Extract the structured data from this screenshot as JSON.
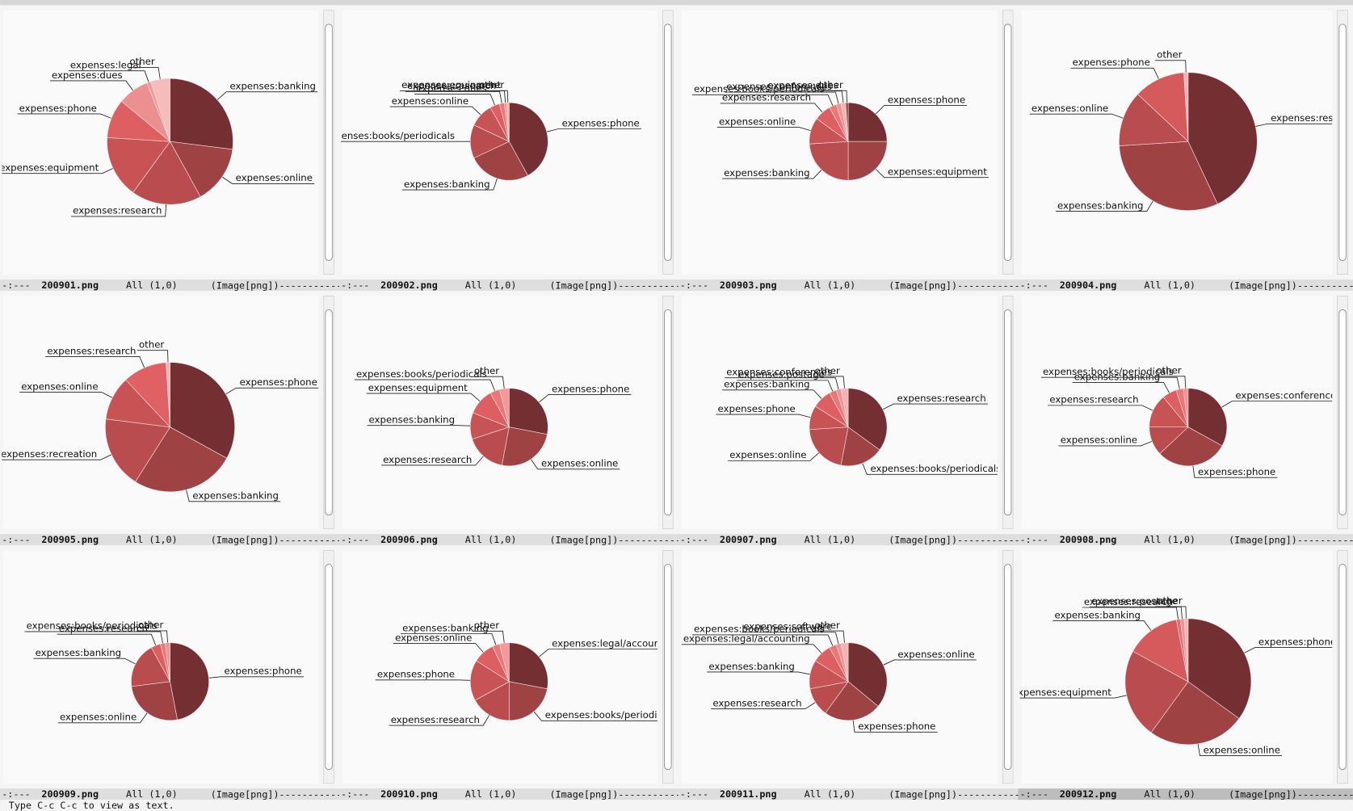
{
  "windows": [
    {
      "status": "-:---",
      "buffer": "200901.png",
      "position": "All (1,0)",
      "mode": "(Image[png])",
      "dashes": "------------",
      "chart_data": {
        "type": "pie",
        "categories": [
          "expenses:banking",
          "expenses:online",
          "expenses:research",
          "expenses:equipment",
          "expenses:phone",
          "expenses:dues",
          "expenses:legal",
          "other"
        ],
        "values": [
          27,
          15,
          18,
          16,
          10,
          8,
          1,
          5
        ],
        "colors": [
          "#732f31",
          "#9e4244",
          "#b84c4e",
          "#c85355",
          "#dd5f61",
          "#ec8f90",
          "#f29a9b",
          "#f6bcbc"
        ]
      }
    },
    {
      "status": "-:---",
      "buffer": "200902.png",
      "position": "All (1,0)",
      "mode": "(Image[png])",
      "dashes": "------------",
      "chart_data": {
        "type": "pie",
        "categories": [
          "expenses:phone",
          "expenses:banking",
          "expenses:books/periodicals",
          "expenses:online",
          "expenses:dues",
          "expenses:research",
          "expenses:equipment",
          "other"
        ],
        "values": [
          42,
          26,
          14,
          10,
          4,
          2,
          1,
          1
        ],
        "colors": [
          "#732f31",
          "#9e4244",
          "#b84c4e",
          "#c85355",
          "#dd5f61",
          "#ec7778",
          "#f29293",
          "#f6b3b3"
        ]
      }
    },
    {
      "status": "-:---",
      "buffer": "200903.png",
      "position": "All (1,0)",
      "mode": "(Image[png])",
      "dashes": "------------",
      "chart_data": {
        "type": "pie",
        "categories": [
          "expenses:phone",
          "expenses:equipment",
          "expenses:banking",
          "expenses:online",
          "expenses:research",
          "expenses:books/periodicals",
          "expenses:conferences",
          "expenses:dues",
          "other"
        ],
        "values": [
          25,
          25,
          24,
          11,
          7,
          3,
          2,
          2,
          1
        ],
        "colors": [
          "#732f31",
          "#9e4244",
          "#b84c4e",
          "#c85355",
          "#dd5f61",
          "#ec7778",
          "#f29293",
          "#f6b3b3",
          "#8a3a3c"
        ]
      }
    },
    {
      "status": "-:---",
      "buffer": "200904.png",
      "position": "All (1,0)",
      "mode": "(Image[png])",
      "dashes": "------------",
      "chart_data": {
        "type": "pie",
        "categories": [
          "expenses:research",
          "expenses:banking",
          "expenses:online",
          "expenses:phone",
          "other"
        ],
        "values": [
          43,
          31,
          13,
          12,
          1
        ],
        "colors": [
          "#732f31",
          "#9e4244",
          "#b84c4e",
          "#d45a5c",
          "#f6b3b3"
        ]
      }
    },
    {
      "status": "-:---",
      "buffer": "200905.png",
      "position": "All (1,0)",
      "mode": "(Image[png])",
      "dashes": "------------",
      "chart_data": {
        "type": "pie",
        "categories": [
          "expenses:phone",
          "expenses:banking",
          "expenses:recreation",
          "expenses:online",
          "expenses:research",
          "other"
        ],
        "values": [
          33,
          26,
          18,
          11,
          11,
          1
        ],
        "colors": [
          "#732f31",
          "#9e4244",
          "#b84c4e",
          "#c85355",
          "#e06163",
          "#f6b3b3"
        ]
      }
    },
    {
      "status": "-:---",
      "buffer": "200906.png",
      "position": "All (1,0)",
      "mode": "(Image[png])",
      "dashes": "------------",
      "chart_data": {
        "type": "pie",
        "categories": [
          "expenses:phone",
          "expenses:online",
          "expenses:research",
          "expenses:banking",
          "expenses:equipment",
          "expenses:books/periodicals",
          "other"
        ],
        "values": [
          28,
          25,
          17,
          11,
          11,
          4,
          4
        ],
        "colors": [
          "#732f31",
          "#9e4244",
          "#b84c4e",
          "#c85355",
          "#dd5f61",
          "#ec7778",
          "#f29a9b"
        ]
      }
    },
    {
      "status": "-:---",
      "buffer": "200907.png",
      "position": "All (1,0)",
      "mode": "(Image[png])",
      "dashes": "------------",
      "chart_data": {
        "type": "pie",
        "categories": [
          "expenses:research",
          "expenses:books/periodicals",
          "expenses:online",
          "expenses:phone",
          "expenses:banking",
          "expenses:postage",
          "expenses:conferences",
          "other"
        ],
        "values": [
          35,
          18,
          21,
          10,
          8,
          3,
          2,
          3
        ],
        "colors": [
          "#732f31",
          "#9e4244",
          "#b84c4e",
          "#c85355",
          "#dd5f61",
          "#ec7778",
          "#f29293",
          "#f6b3b3"
        ]
      }
    },
    {
      "status": "-:---",
      "buffer": "200908.png",
      "position": "All (1,0)",
      "mode": "(Image[png])",
      "dashes": "------------",
      "chart_data": {
        "type": "pie",
        "categories": [
          "expenses:conferences",
          "expenses:phone",
          "expenses:online",
          "expenses:research",
          "expenses:banking",
          "expenses:books/periodicals",
          "other"
        ],
        "values": [
          33,
          30,
          12,
          14,
          6,
          3,
          2
        ],
        "colors": [
          "#732f31",
          "#9e4244",
          "#b84c4e",
          "#c85355",
          "#dd5f61",
          "#ec7778",
          "#f29293"
        ]
      }
    },
    {
      "status": "-:---",
      "buffer": "200909.png",
      "position": "All (1,0)",
      "mode": "(Image[png])",
      "dashes": "------------",
      "chart_data": {
        "type": "pie",
        "categories": [
          "expenses:phone",
          "expenses:online",
          "expenses:banking",
          "expenses:research",
          "expenses:books/periodicals",
          "other"
        ],
        "values": [
          47,
          26,
          19,
          4,
          2,
          2
        ],
        "colors": [
          "#732f31",
          "#9e4244",
          "#b84c4e",
          "#dd5f61",
          "#ec7778",
          "#f29293"
        ]
      }
    },
    {
      "status": "-:---",
      "buffer": "200910.png",
      "position": "All (1,0)",
      "mode": "(Image[png])",
      "dashes": "------------",
      "chart_data": {
        "type": "pie",
        "categories": [
          "expenses:legal/accounting",
          "expenses:books/periodicals",
          "expenses:research",
          "expenses:phone",
          "expenses:online",
          "expenses:banking",
          "other"
        ],
        "values": [
          28,
          22,
          17,
          17,
          9,
          3,
          4
        ],
        "colors": [
          "#732f31",
          "#9e4244",
          "#b84c4e",
          "#c85355",
          "#dd5f61",
          "#ec7778",
          "#f29a9b"
        ]
      }
    },
    {
      "status": "-:---",
      "buffer": "200911.png",
      "position": "All (1,0)",
      "mode": "(Image[png])",
      "dashes": "------------",
      "chart_data": {
        "type": "pie",
        "categories": [
          "expenses:online",
          "expenses:phone",
          "expenses:research",
          "expenses:banking",
          "expenses:legal/accounting",
          "expenses:books/periodicals",
          "expenses:software",
          "other"
        ],
        "values": [
          36,
          24,
          12,
          12,
          8,
          3,
          2,
          3
        ],
        "colors": [
          "#732f31",
          "#9e4244",
          "#b84c4e",
          "#c85355",
          "#dd5f61",
          "#ec7778",
          "#f29293",
          "#f6b3b3"
        ]
      }
    },
    {
      "status": "-:---",
      "buffer": "200912.png",
      "position": "All (1,0)",
      "mode": "(Image[png])",
      "dashes": "------------",
      "chart_data": {
        "type": "pie",
        "categories": [
          "expenses:phone",
          "expenses:online",
          "expenses:equipment",
          "expenses:banking",
          "expenses:research",
          "expenses:postage",
          "other"
        ],
        "values": [
          35,
          25,
          23,
          14,
          1,
          1,
          1
        ],
        "colors": [
          "#732f31",
          "#9e4244",
          "#b84c4e",
          "#d45a5c",
          "#e76d6f",
          "#f29293",
          "#f6b3b3"
        ]
      }
    }
  ],
  "echo_area": "Type C-c C-c to view as text."
}
